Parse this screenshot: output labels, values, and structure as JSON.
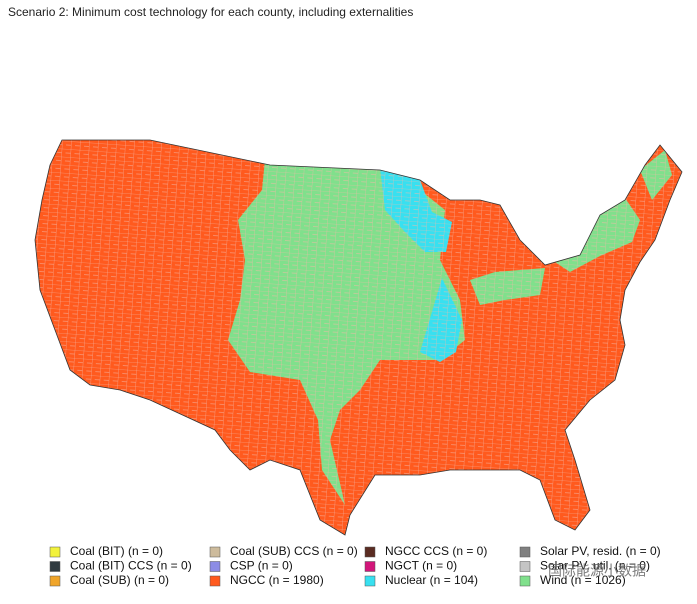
{
  "title": "Scenario 2: Minimum cost technology for each county, including externalities",
  "legend": [
    {
      "label": "Coal (BIT) (n = 0)",
      "color": "#f2f23c"
    },
    {
      "label": "Coal (BIT) CCS (n = 0)",
      "color": "#2f3a40"
    },
    {
      "label": "Coal (SUB) (n = 0)",
      "color": "#f0a52a"
    },
    {
      "label": "Coal (SUB) CCS (n = 0)",
      "color": "#cdbb9c"
    },
    {
      "label": "CSP (n = 0)",
      "color": "#8c8ce6"
    },
    {
      "label": "NGCC (n = 1980)",
      "color": "#ff5a1e"
    },
    {
      "label": "NGCC CCS (n = 0)",
      "color": "#5a2c22"
    },
    {
      "label": "NGCT (n = 0)",
      "color": "#d2167a"
    },
    {
      "label": "Nuclear (n = 104)",
      "color": "#38e0f0"
    },
    {
      "label": "Solar PV, resid. (n = 0)",
      "color": "#808080"
    },
    {
      "label": "Solar PV, util. (n = 0)",
      "color": "#c4c4c4"
    },
    {
      "label": "Wind (n = 1026)",
      "color": "#80e08c"
    }
  ],
  "watermark": "国际能源小数据"
}
